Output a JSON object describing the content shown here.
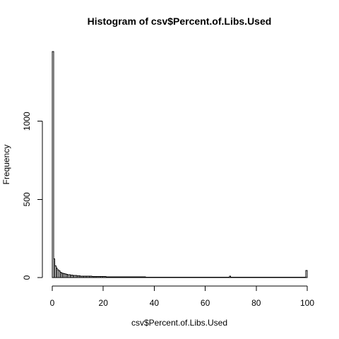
{
  "chart_data": {
    "type": "bar",
    "title": "Histogram of csv$Percent.of.Libs.Used",
    "xlabel": "csv$Percent.of.Libs.Used",
    "ylabel": "Frequency",
    "xlim": [
      0,
      100
    ],
    "ylim": [
      0,
      1450
    ],
    "xticks": [
      0,
      20,
      40,
      60,
      80,
      100
    ],
    "yticks": [
      0,
      500,
      1000
    ],
    "grid": false,
    "bin_width": 0.5,
    "frequencies": [
      1445,
      120,
      75,
      60,
      50,
      42,
      35,
      30,
      28,
      25,
      22,
      20,
      18,
      17,
      16,
      15,
      14,
      14,
      13,
      12,
      12,
      11,
      10,
      10,
      9,
      9,
      9,
      8,
      8,
      8,
      8,
      7,
      7,
      7,
      7,
      6,
      6,
      6,
      6,
      6,
      6,
      6,
      5,
      5,
      5,
      5,
      5,
      5,
      5,
      5,
      5,
      5,
      5,
      4,
      4,
      4,
      4,
      4,
      4,
      4,
      4,
      4,
      4,
      4,
      4,
      4,
      4,
      4,
      4,
      4,
      4,
      4,
      4,
      3,
      3,
      3,
      3,
      3,
      3,
      3,
      3,
      3,
      3,
      3,
      3,
      3,
      3,
      3,
      3,
      3,
      3,
      3,
      3,
      3,
      3,
      3,
      3,
      3,
      3,
      3,
      3,
      3,
      3,
      3,
      3,
      3,
      3,
      3,
      3,
      3,
      3,
      3,
      3,
      3,
      3,
      3,
      3,
      3,
      3,
      3,
      3,
      3,
      3,
      3,
      3,
      3,
      3,
      3,
      3,
      3,
      3,
      3,
      3,
      3,
      3,
      3,
      3,
      3,
      3,
      8,
      3,
      3,
      3,
      3,
      3,
      3,
      3,
      3,
      3,
      3,
      3,
      3,
      3,
      3,
      3,
      3,
      3,
      3,
      3,
      3,
      3,
      3,
      3,
      3,
      3,
      3,
      3,
      3,
      3,
      3,
      3,
      3,
      3,
      3,
      3,
      3,
      3,
      3,
      3,
      3,
      3,
      3,
      3,
      3,
      3,
      3,
      3,
      3,
      3,
      3,
      3,
      3,
      3,
      3,
      3,
      3,
      3,
      3,
      3,
      45
    ]
  }
}
